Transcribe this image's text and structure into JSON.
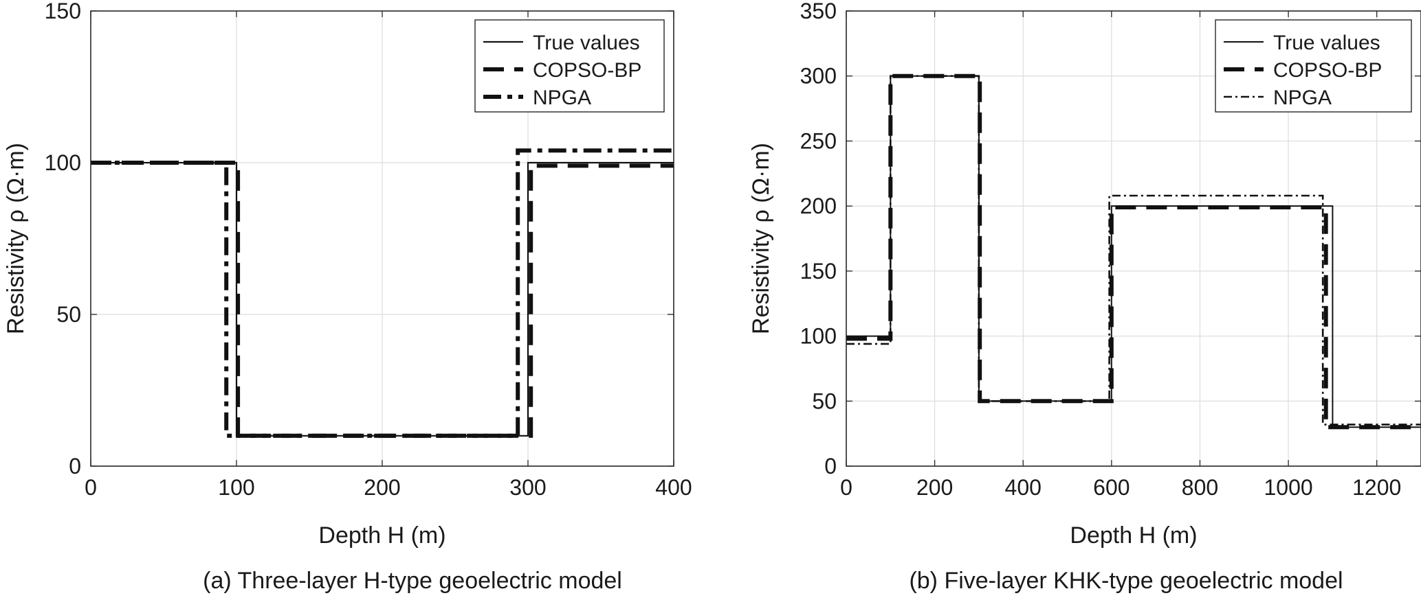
{
  "chart_data": [
    {
      "id": "a",
      "type": "line",
      "step": true,
      "title": "(a) Three-layer H-type geoelectric model",
      "xlabel": "Depth H (m)",
      "ylabel": "Resistivity ρ (Ω·m)",
      "xlim": [
        0,
        400
      ],
      "ylim": [
        0,
        150
      ],
      "xticks": [
        0,
        100,
        200,
        300,
        400
      ],
      "yticks": [
        0,
        50,
        100,
        150
      ],
      "grid": true,
      "legend_position": "top-right",
      "series": [
        {
          "name": "True values",
          "style": "solid",
          "x": [
            0,
            100,
            100,
            300,
            300,
            400
          ],
          "y": [
            100,
            100,
            10,
            10,
            100,
            100
          ]
        },
        {
          "name": "COPSO-BP",
          "style": "dashed",
          "x": [
            0,
            101,
            101,
            302,
            302,
            400
          ],
          "y": [
            100,
            100,
            10,
            10,
            99,
            99
          ]
        },
        {
          "name": "NPGA",
          "style": "dashdot",
          "x": [
            0,
            93,
            93,
            293,
            293,
            400
          ],
          "y": [
            100,
            100,
            10,
            10,
            104,
            104
          ]
        }
      ]
    },
    {
      "id": "b",
      "type": "line",
      "step": true,
      "title": "(b) Five-layer KHK-type geoelectric model",
      "xlabel": "Depth H (m)",
      "ylabel": "Resistivity ρ (Ω·m)",
      "xlim": [
        0,
        1300
      ],
      "ylim": [
        0,
        350
      ],
      "xticks": [
        0,
        200,
        400,
        600,
        800,
        1000,
        1200
      ],
      "yticks": [
        0,
        50,
        100,
        150,
        200,
        250,
        300,
        350
      ],
      "grid": true,
      "legend_position": "top-right",
      "series": [
        {
          "name": "True values",
          "style": "solid",
          "x": [
            0,
            100,
            100,
            300,
            300,
            600,
            600,
            1100,
            1100,
            1300
          ],
          "y": [
            100,
            100,
            300,
            300,
            50,
            50,
            200,
            200,
            30,
            30
          ]
        },
        {
          "name": "COPSO-BP",
          "style": "dashed",
          "x": [
            0,
            100,
            100,
            302,
            302,
            600,
            600,
            1085,
            1085,
            1300
          ],
          "y": [
            98,
            98,
            300,
            300,
            50,
            50,
            199,
            199,
            30,
            30
          ]
        },
        {
          "name": "NPGA",
          "style": "dashdot",
          "x": [
            0,
            100,
            100,
            300,
            300,
            595,
            595,
            1078,
            1078,
            1300
          ],
          "y": [
            94,
            94,
            300,
            300,
            50,
            50,
            208,
            208,
            32,
            32
          ]
        }
      ]
    }
  ]
}
